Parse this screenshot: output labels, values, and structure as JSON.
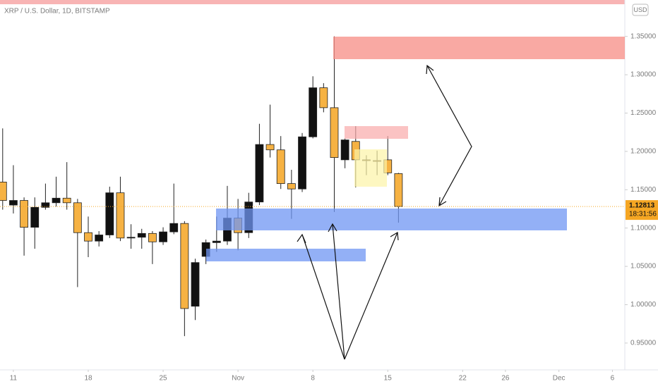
{
  "chart_data": {
    "type": "candlestick",
    "title": "XRP / U.S. Dollar, 1D, BITSTAMP",
    "currency": "USD",
    "x": [
      0,
      1,
      2,
      3,
      4,
      5,
      6,
      7,
      8,
      9,
      10,
      11,
      12,
      13,
      14,
      15,
      16,
      17,
      18,
      19,
      20,
      21,
      22,
      23,
      24,
      25,
      26,
      27,
      28,
      29,
      30,
      31,
      32,
      33,
      34,
      35,
      36,
      37
    ],
    "open": [
      1.16,
      1.13,
      1.136,
      1.101,
      1.127,
      1.133,
      1.139,
      1.133,
      1.094,
      1.083,
      1.091,
      1.146,
      1.087,
      1.088,
      1.093,
      1.082,
      1.095,
      1.106,
      0.998,
      1.063,
      1.081,
      1.083,
      1.113,
      1.094,
      1.134,
      1.209,
      1.202,
      1.158,
      1.151,
      1.219,
      1.283,
      1.257,
      1.189,
      1.213,
      1.189,
      1.188,
      1.189,
      1.171
    ],
    "high": [
      1.23,
      1.182,
      1.14,
      1.14,
      1.158,
      1.167,
      1.186,
      1.138,
      1.115,
      1.096,
      1.154,
      1.167,
      1.105,
      1.099,
      1.096,
      1.101,
      1.158,
      1.109,
      1.06,
      1.085,
      1.115,
      1.155,
      1.138,
      1.146,
      1.236,
      1.261,
      1.22,
      1.176,
      1.224,
      1.298,
      1.289,
      1.35,
      1.217,
      1.233,
      1.195,
      1.201,
      1.22,
      1.172
    ],
    "low": [
      1.124,
      1.119,
      1.064,
      1.073,
      1.124,
      1.128,
      1.124,
      1.023,
      1.062,
      1.076,
      1.087,
      1.083,
      1.073,
      1.073,
      1.053,
      1.078,
      1.092,
      0.959,
      0.98,
      1.053,
      1.069,
      1.078,
      1.071,
      1.087,
      1.13,
      1.192,
      1.151,
      1.112,
      1.147,
      1.217,
      1.251,
      1.121,
      1.178,
      1.153,
      1.169,
      1.169,
      1.169,
      1.107
    ],
    "close": [
      1.136,
      1.136,
      1.101,
      1.127,
      1.133,
      1.139,
      1.133,
      1.094,
      1.083,
      1.091,
      1.146,
      1.087,
      1.088,
      1.093,
      1.082,
      1.095,
      1.106,
      0.995,
      1.055,
      1.081,
      1.083,
      1.113,
      1.094,
      1.134,
      1.209,
      1.202,
      1.158,
      1.151,
      1.219,
      1.283,
      1.257,
      1.192,
      1.215,
      1.189,
      1.188,
      1.187,
      1.172,
      1.12813
    ],
    "up_color": "#111111",
    "down_color": "#f6b243",
    "last_price": {
      "value": 1.12813,
      "label": "1.12813"
    },
    "countdown": "18:31:56",
    "xlim": [
      -0.25,
      58.16
    ],
    "ylim": [
      0.915,
      1.3975
    ],
    "xticks": [
      {
        "value": 1,
        "label": "11"
      },
      {
        "value": 8,
        "label": "18"
      },
      {
        "value": 15,
        "label": "25"
      },
      {
        "value": 22,
        "label": "Nov"
      },
      {
        "value": 29,
        "label": "8"
      },
      {
        "value": 36,
        "label": "15"
      },
      {
        "value": 43,
        "label": "22"
      },
      {
        "value": 47,
        "label": "26"
      },
      {
        "value": 52,
        "label": "Dec"
      },
      {
        "value": 57,
        "label": "6"
      }
    ],
    "yticks": [
      {
        "value": 0.95,
        "label": "0.95000"
      },
      {
        "value": 1.0,
        "label": "1.00000"
      },
      {
        "value": 1.05,
        "label": "1.05000"
      },
      {
        "value": 1.1,
        "label": "1.10000"
      },
      {
        "value": 1.15,
        "label": "1.15000"
      },
      {
        "value": 1.2,
        "label": "1.20000"
      },
      {
        "value": 1.25,
        "label": "1.25000"
      },
      {
        "value": 1.3,
        "label": "1.30000"
      },
      {
        "value": 1.35,
        "label": "1.35000"
      }
    ]
  }
}
